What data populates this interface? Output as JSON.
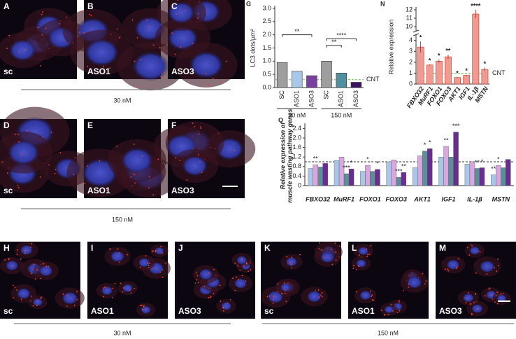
{
  "images": {
    "top": [
      {
        "letter": "A",
        "label": "sc"
      },
      {
        "letter": "B",
        "label": "ASO1"
      },
      {
        "letter": "C",
        "label": "ASO3"
      },
      {
        "letter": "D",
        "label": "sc"
      },
      {
        "letter": "E",
        "label": "ASO1"
      },
      {
        "letter": "F",
        "label": "ASO3"
      }
    ],
    "top_rows": [
      "30 nM",
      "150 nM"
    ],
    "bottom": [
      {
        "letter": "H",
        "label": "sc"
      },
      {
        "letter": "I",
        "label": "ASO1"
      },
      {
        "letter": "J",
        "label": "ASO3"
      },
      {
        "letter": "K",
        "label": "sc"
      },
      {
        "letter": "L",
        "label": "ASO1"
      },
      {
        "letter": "M",
        "label": "ASO3"
      }
    ],
    "bottom_groups": [
      "30 nM",
      "150 nM"
    ]
  },
  "chart_data": [
    {
      "type": "bar",
      "letter": "G",
      "ylabel": "LC3 dots/µm²",
      "categories": [
        "SC",
        "ASO1",
        "ASO3",
        "SC",
        "ASO1",
        "ASO3"
      ],
      "values": [
        0.95,
        0.62,
        0.45,
        1.0,
        0.55,
        0.2
      ],
      "colors": [
        "#9e9e9e",
        "#a9c7e8",
        "#7b3fa0",
        "#9e9e9e",
        "#4f8fa0",
        "#3d1260"
      ],
      "groups": [
        "30 nM",
        "150 nM"
      ],
      "reference": {
        "value": 0.3,
        "label": "CNT"
      },
      "annotations": [
        "**",
        "**",
        "****"
      ],
      "ylim": [
        0,
        3
      ],
      "yticks": [
        {
          "value": 0,
          "label": "0.0"
        },
        {
          "value": 0.5,
          "label": "0.5"
        },
        {
          "value": 1,
          "label": "1.0"
        },
        {
          "value": 1.5,
          "label": "1.5"
        },
        {
          "value": 2,
          "label": "2.0"
        },
        {
          "value": 2.5,
          "label": "2.5"
        },
        {
          "value": 3,
          "label": "3.0"
        }
      ]
    },
    {
      "type": "bar",
      "letter": "N",
      "ylabel": "Relative expression",
      "categories": [
        "FBXO32",
        "MuRF1",
        "FOXO1",
        "FOXO3",
        "AKT1",
        "IGF1",
        "IL-1β",
        "MSTN"
      ],
      "values": [
        3.4,
        1.75,
        2.1,
        2.5,
        0.6,
        0.8,
        11.5,
        1.35
      ],
      "errors": [
        0.5,
        0.05,
        0.15,
        0.2,
        0.03,
        0.05,
        0.5,
        0.15
      ],
      "color": "#f19a92",
      "reference": {
        "value": 1,
        "label": "CNT"
      },
      "annotations": [
        "*",
        "*",
        "*",
        "**",
        "*",
        "*",
        "****",
        "*"
      ],
      "ylim": [
        0,
        12
      ],
      "ybreak": [
        4.5,
        9.5
      ],
      "yticks": [
        0,
        1,
        2,
        3,
        4,
        10,
        11,
        12
      ]
    },
    {
      "type": "grouped_bar",
      "letter": "O",
      "ylabel": [
        "Relative expression of",
        "muscle wasting pathway genes"
      ],
      "categories": [
        "FBXO32",
        "MuRF1",
        "FOXO1",
        "FOXO3",
        "AKT1",
        "IGF1",
        "IL-1β",
        "MSTN"
      ],
      "series": [
        {
          "color": "#a9c7e8",
          "values": [
            0.72,
            1.05,
            0.6,
            1.0,
            0.75,
            1.2,
            0.9,
            0.45
          ],
          "annotations": [
            null,
            null,
            null,
            null,
            null,
            null,
            null,
            "**"
          ]
        },
        {
          "color": "#d9a6e0",
          "values": [
            0.88,
            1.2,
            0.85,
            1.08,
            1.25,
            1.65,
            1.0,
            0.85
          ],
          "annotations": [
            "**",
            null,
            "*",
            null,
            null,
            "**",
            null,
            "*"
          ]
        },
        {
          "color": "#5c8f99",
          "values": [
            0.78,
            0.5,
            0.6,
            0.35,
            1.45,
            1.2,
            0.72,
            0.75
          ],
          "annotations": [
            null,
            "***",
            null,
            "***",
            "*",
            null,
            "**",
            null
          ]
        },
        {
          "color": "#6a2c91",
          "values": [
            0.93,
            0.7,
            0.68,
            0.55,
            1.55,
            2.25,
            0.75,
            1.1
          ],
          "annotations": [
            null,
            "*",
            "*",
            "**",
            "*",
            "***",
            "*",
            null
          ]
        }
      ],
      "reference": {
        "value": 1
      },
      "ylim": [
        0,
        2.5
      ],
      "yticks": [
        0,
        0.4,
        0.8,
        1.2,
        1.6,
        {
          "value": 2,
          "label": "2.0"
        },
        2.4
      ]
    }
  ]
}
